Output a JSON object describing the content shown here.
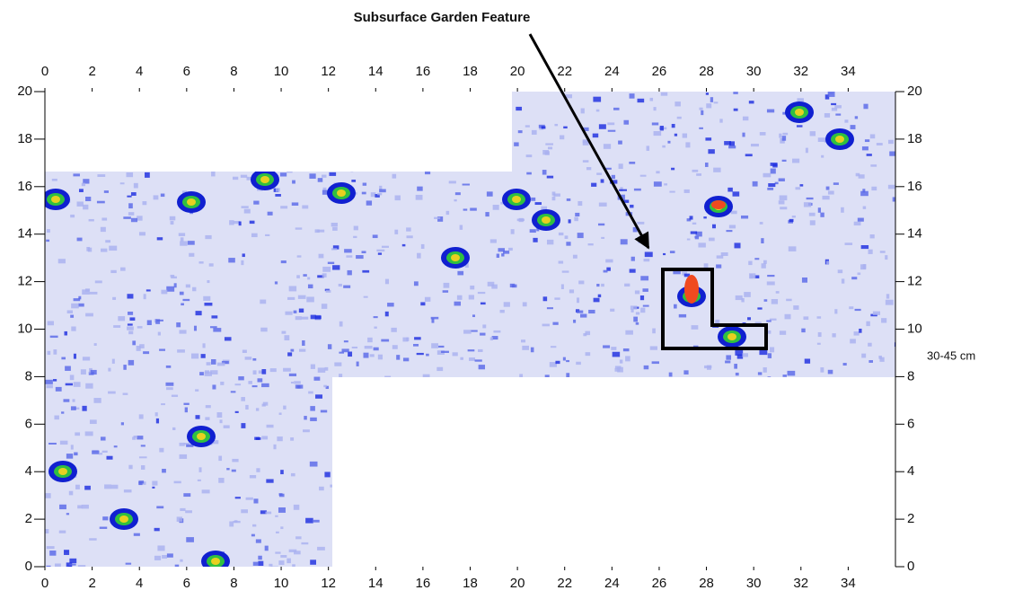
{
  "chart_data": {
    "type": "heatmap",
    "title": "Subsurface Garden Feature",
    "depth_label": "30-45 cm",
    "xlim": [
      0,
      36
    ],
    "ylim": [
      0,
      20
    ],
    "xticks": [
      0,
      2,
      4,
      6,
      8,
      10,
      12,
      14,
      16,
      18,
      20,
      22,
      24,
      26,
      28,
      30,
      32,
      34
    ],
    "yticks": [
      0,
      2,
      4,
      6,
      8,
      10,
      12,
      14,
      16,
      18,
      20
    ]
  }
}
